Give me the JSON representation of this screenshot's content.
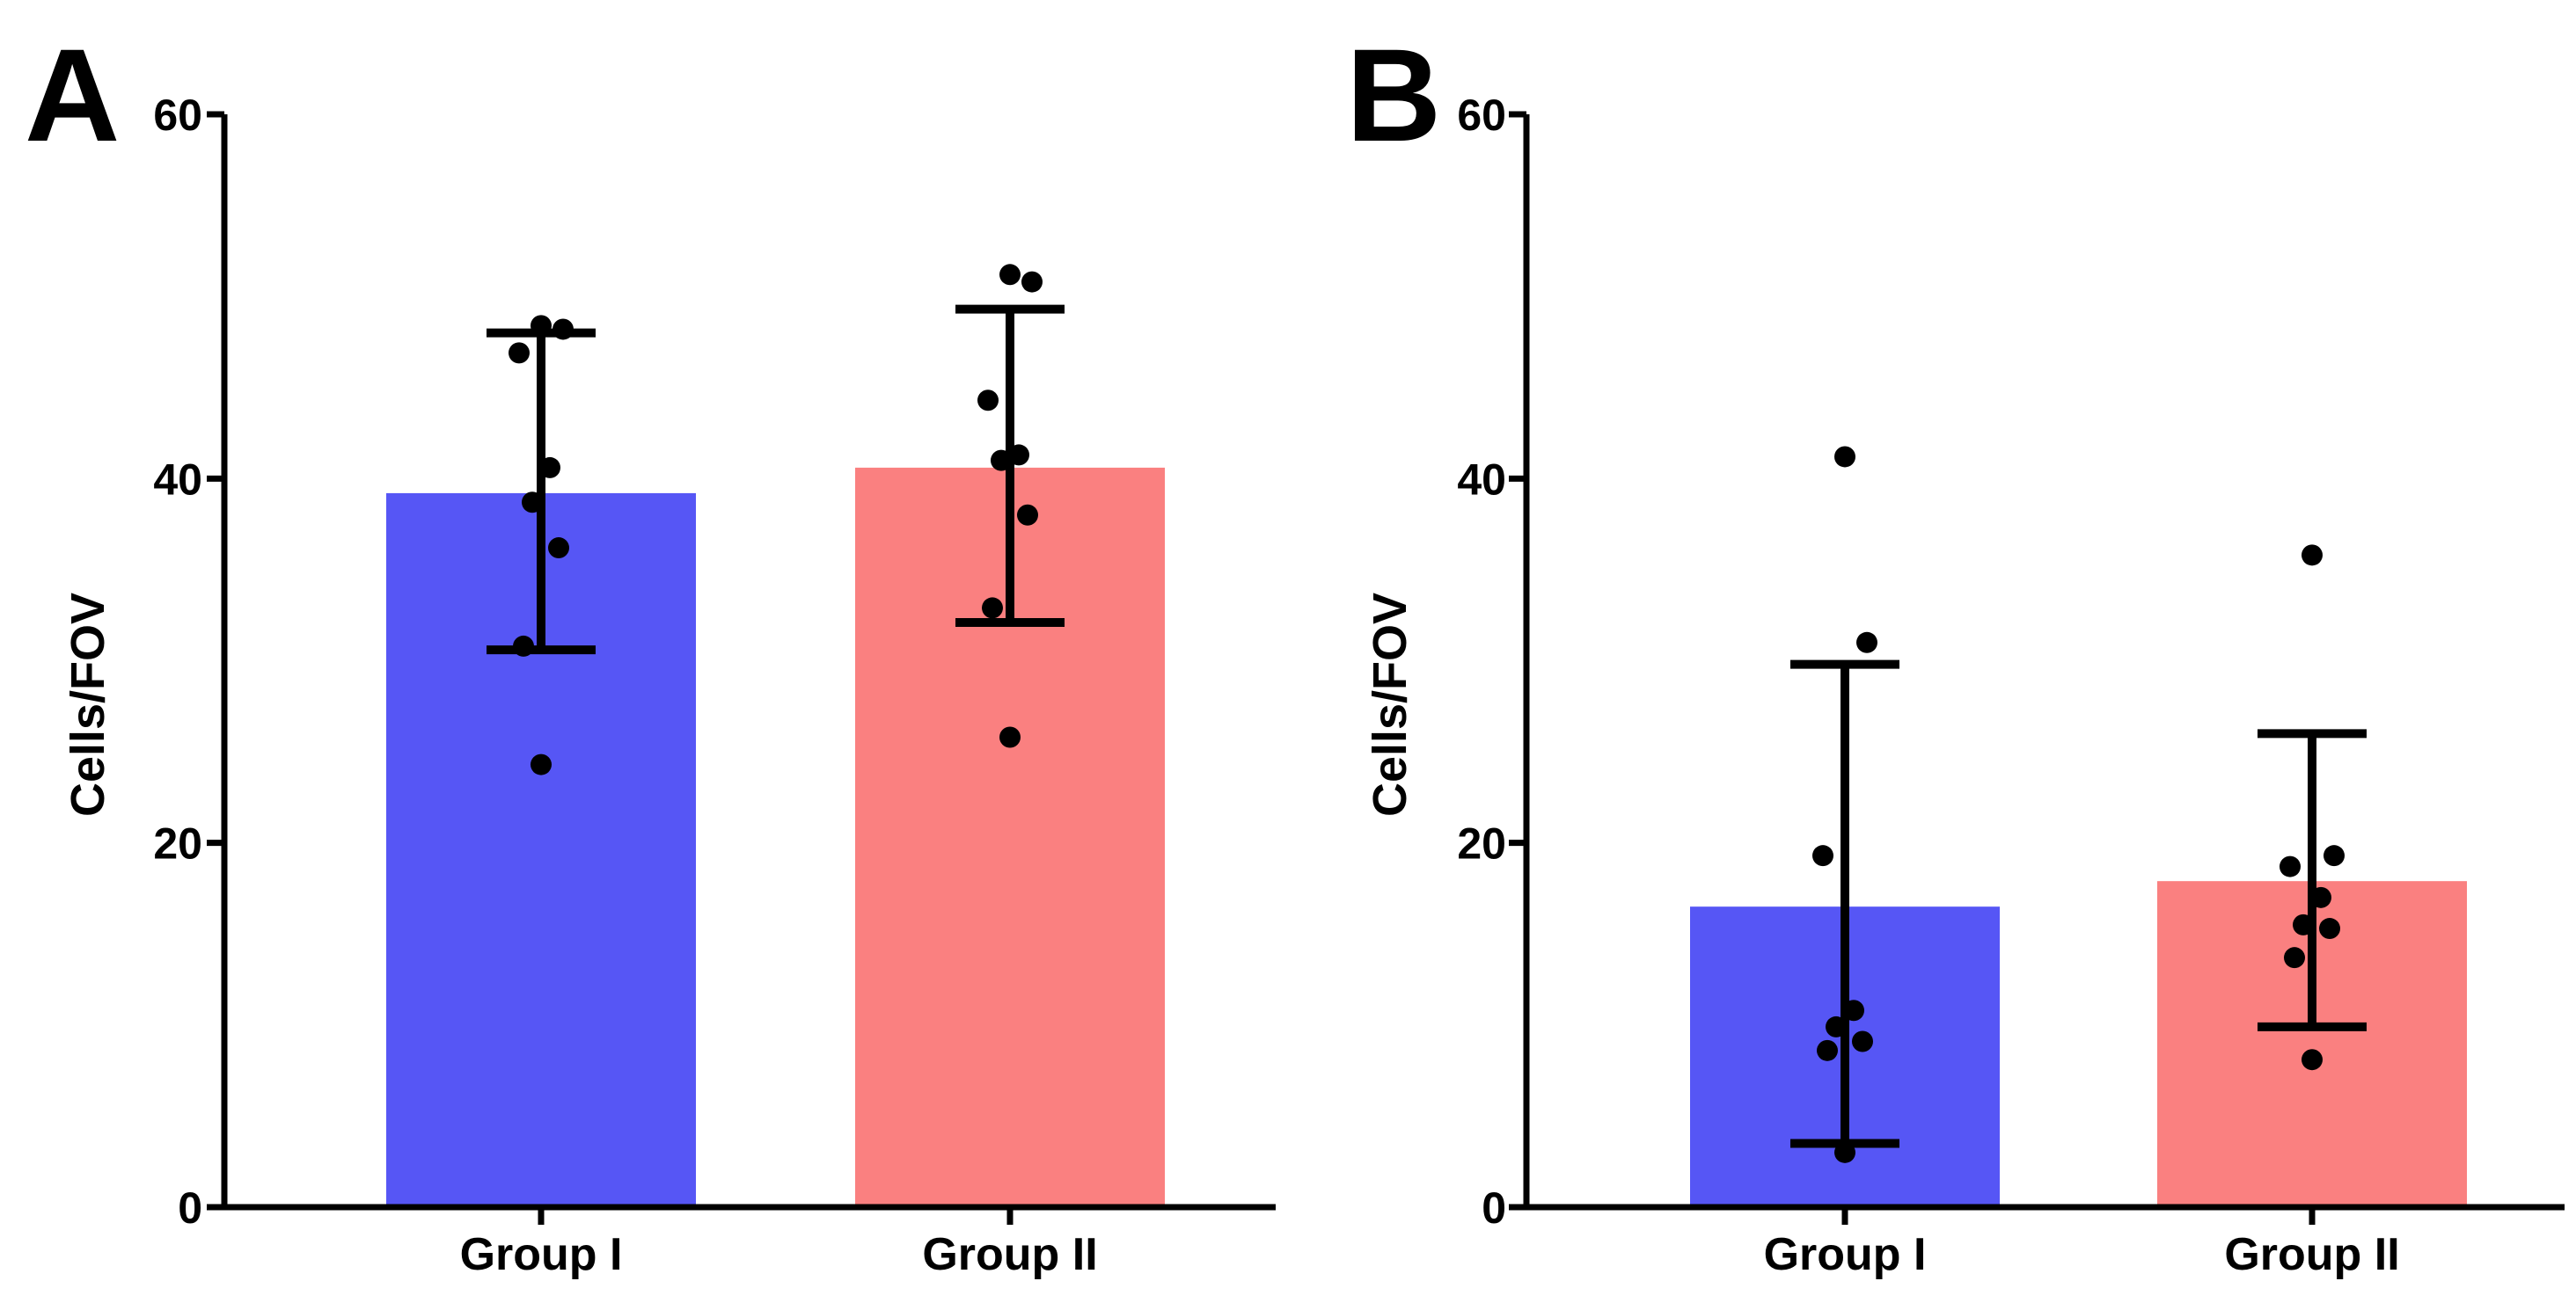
{
  "chart_data": [
    {
      "type": "bar",
      "panel_label": "A",
      "ylabel": "Cells/FOV",
      "xlabel": "",
      "ylim": [
        0,
        60
      ],
      "yticks": [
        "0",
        "20",
        "40",
        "60"
      ],
      "categories": [
        "Group I",
        "Group II"
      ],
      "colors": [
        "#5656f5",
        "#fa8080"
      ],
      "values": [
        39.2,
        40.6
      ],
      "error": [
        {
          "lower": 30.6,
          "upper": 48.0
        },
        {
          "lower": 32.1,
          "upper": 49.3
        }
      ],
      "points": [
        [
          24.3,
          30.8,
          36.2,
          38.7,
          40.6,
          46.9,
          48.2,
          48.4
        ],
        [
          25.8,
          32.9,
          38.0,
          41.0,
          41.3,
          44.3,
          50.8,
          51.2
        ]
      ]
    },
    {
      "type": "bar",
      "panel_label": "B",
      "ylabel": "Cells/FOV",
      "xlabel": "",
      "ylim": [
        0,
        60
      ],
      "yticks": [
        "0",
        "20",
        "40",
        "60"
      ],
      "categories": [
        "Group I",
        "Group II"
      ],
      "colors": [
        "#5656f5",
        "#fa8080"
      ],
      "values": [
        16.5,
        17.9
      ],
      "error": [
        {
          "lower": 3.5,
          "upper": 29.8
        },
        {
          "lower": 9.9,
          "upper": 26.0
        }
      ],
      "points": [
        [
          3.0,
          8.6,
          9.1,
          9.9,
          10.8,
          19.3,
          31.0,
          41.2
        ],
        [
          8.1,
          13.7,
          15.3,
          15.5,
          17.0,
          18.7,
          19.3,
          35.8
        ]
      ]
    }
  ]
}
